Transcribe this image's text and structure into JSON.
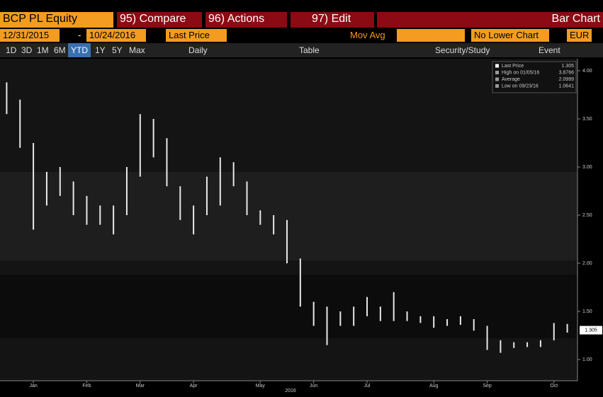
{
  "header": {
    "ticker": "BCP PL Equity",
    "buttons": [
      "95) Compare",
      "96) Actions",
      "97) Edit"
    ],
    "view": "Bar Chart"
  },
  "controls": {
    "start_date": "12/31/2015",
    "dash": "-",
    "end_date": "10/24/2016",
    "field": "Last Price",
    "study": "Mov Avg",
    "lower": "No Lower Chart",
    "currency": "EUR"
  },
  "toolbar": {
    "periods": [
      "1D",
      "3D",
      "1M",
      "6M",
      "YTD",
      "1Y",
      "5Y",
      "Max"
    ],
    "active_period": "YTD",
    "frequency": "Daily",
    "table": "Table",
    "security_study": "Security/Study",
    "event": "Event"
  },
  "chart_data": {
    "type": "bar",
    "x_title": "2016",
    "categories": [
      null,
      null,
      "Jan",
      null,
      null,
      null,
      "Feb",
      null,
      null,
      null,
      "Mar",
      null,
      null,
      null,
      "Apr",
      null,
      null,
      null,
      null,
      "May",
      null,
      null,
      null,
      "Jun",
      null,
      null,
      null,
      "Jul",
      null,
      null,
      null,
      null,
      "Aug",
      null,
      null,
      null,
      "Sep",
      null,
      null,
      null,
      null,
      "Oct",
      null
    ],
    "high": [
      3.88,
      3.7,
      3.25,
      2.95,
      3.0,
      2.85,
      2.7,
      2.6,
      2.6,
      3.0,
      3.55,
      3.5,
      3.3,
      2.8,
      2.6,
      2.9,
      3.1,
      3.05,
      2.85,
      2.55,
      2.5,
      2.45,
      2.05,
      1.6,
      1.55,
      1.5,
      1.55,
      1.65,
      1.55,
      1.7,
      1.5,
      1.45,
      1.45,
      1.42,
      1.45,
      1.42,
      1.35,
      1.2,
      1.18,
      1.18,
      1.2,
      1.38,
      1.37
    ],
    "low": [
      3.55,
      3.2,
      2.35,
      2.6,
      2.7,
      2.5,
      2.4,
      2.4,
      2.3,
      2.5,
      2.9,
      3.1,
      2.8,
      2.45,
      2.3,
      2.5,
      2.6,
      2.8,
      2.5,
      2.4,
      2.3,
      2.0,
      1.55,
      1.35,
      1.15,
      1.35,
      1.35,
      1.45,
      1.4,
      1.4,
      1.4,
      1.38,
      1.33,
      1.35,
      1.36,
      1.3,
      1.1,
      1.07,
      1.12,
      1.13,
      1.13,
      1.2,
      1.28
    ],
    "color": "#e8e8e8",
    "ylim": [
      0.78,
      4.125
    ],
    "yticks": [
      {
        "value": 1,
        "label": "1.00"
      },
      {
        "value": 1.5,
        "label": "1.50"
      },
      {
        "value": 2,
        "label": "2.00"
      },
      {
        "value": 2.5,
        "label": "2.50"
      },
      {
        "value": 3,
        "label": "3.00"
      },
      {
        "value": 3.5,
        "label": "3.50"
      },
      {
        "value": 4,
        "label": "4.00"
      }
    ],
    "legend": [
      {
        "name": "Last Price",
        "value": 1.305
      },
      {
        "name": "High on 01/05/16",
        "value": 3.8766
      },
      {
        "name": "Average",
        "value": 2.0999
      },
      {
        "name": "Low on 09/23/16",
        "value": 1.0641
      }
    ]
  }
}
